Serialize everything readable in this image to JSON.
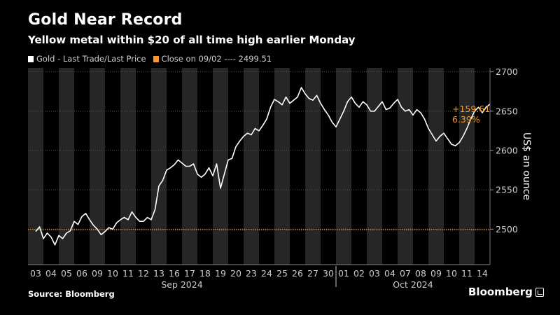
{
  "header": {
    "title": "Gold Near Record",
    "subtitle": "Yellow metal within $20 of all time high earlier Monday"
  },
  "legend": {
    "series_label": "Gold - Last Trade/Last Price",
    "reference_label": "Close on 09/02 ---- 2499.51"
  },
  "annotation": {
    "change_abs": "+159.61",
    "change_pct": "6.39%"
  },
  "footer": {
    "source": "Source: Bloomberg",
    "brand": "Bloomberg"
  },
  "colors": {
    "background": "#000000",
    "shade": "#262626",
    "line": "#ffffff",
    "reference": "#f59a2c",
    "grid": "#555555",
    "axis_text": "#cccccc"
  },
  "chart_data": {
    "type": "line",
    "title": "Gold Near Record",
    "subtitle": "Yellow metal within $20 of all time high earlier Monday",
    "ylabel": "US$ an ounce",
    "ylim": [
      2455,
      2705
    ],
    "yticks": [
      2500,
      2550,
      2600,
      2650,
      2700
    ],
    "grid": "horizontal dotted",
    "legend_position": "top-left",
    "reference_line": {
      "name": "Close on 09/02",
      "value": 2499.51
    },
    "categories": [
      "03",
      "04",
      "05",
      "06",
      "09",
      "10",
      "11",
      "12",
      "13",
      "16",
      "17",
      "18",
      "19",
      "20",
      "23",
      "24",
      "25",
      "26",
      "27",
      "30",
      "01",
      "02",
      "03",
      "04",
      "07",
      "08",
      "09",
      "10",
      "11",
      "14"
    ],
    "month_labels": [
      {
        "label": "Sep 2024",
        "start": 0,
        "end": 19
      },
      {
        "label": "Oct 2024",
        "start": 20,
        "end": 29
      }
    ],
    "series": [
      {
        "name": "Gold - Last Trade/Last Price",
        "points": [
          [
            0.0,
            2497
          ],
          [
            0.25,
            2503
          ],
          [
            0.5,
            2488
          ],
          [
            0.75,
            2495
          ],
          [
            1.0,
            2490
          ],
          [
            1.25,
            2480
          ],
          [
            1.5,
            2492
          ],
          [
            1.75,
            2488
          ],
          [
            2.0,
            2495
          ],
          [
            2.25,
            2498
          ],
          [
            2.5,
            2510
          ],
          [
            2.75,
            2506
          ],
          [
            3.0,
            2516
          ],
          [
            3.25,
            2520
          ],
          [
            3.5,
            2512
          ],
          [
            3.75,
            2505
          ],
          [
            4.0,
            2500
          ],
          [
            4.25,
            2493
          ],
          [
            4.5,
            2497
          ],
          [
            4.75,
            2502
          ],
          [
            5.0,
            2500
          ],
          [
            5.25,
            2508
          ],
          [
            5.5,
            2512
          ],
          [
            5.75,
            2515
          ],
          [
            6.0,
            2512
          ],
          [
            6.25,
            2522
          ],
          [
            6.5,
            2515
          ],
          [
            6.75,
            2510
          ],
          [
            7.0,
            2510
          ],
          [
            7.25,
            2515
          ],
          [
            7.5,
            2512
          ],
          [
            7.75,
            2525
          ],
          [
            8.0,
            2555
          ],
          [
            8.25,
            2562
          ],
          [
            8.5,
            2575
          ],
          [
            8.75,
            2578
          ],
          [
            9.0,
            2582
          ],
          [
            9.25,
            2588
          ],
          [
            9.5,
            2584
          ],
          [
            9.75,
            2580
          ],
          [
            10.0,
            2580
          ],
          [
            10.25,
            2583
          ],
          [
            10.5,
            2570
          ],
          [
            10.75,
            2566
          ],
          [
            11.0,
            2570
          ],
          [
            11.25,
            2578
          ],
          [
            11.5,
            2568
          ],
          [
            11.75,
            2583
          ],
          [
            12.0,
            2552
          ],
          [
            12.25,
            2570
          ],
          [
            12.5,
            2588
          ],
          [
            12.75,
            2590
          ],
          [
            13.0,
            2605
          ],
          [
            13.25,
            2612
          ],
          [
            13.5,
            2618
          ],
          [
            13.75,
            2622
          ],
          [
            14.0,
            2620
          ],
          [
            14.25,
            2628
          ],
          [
            14.5,
            2625
          ],
          [
            14.75,
            2632
          ],
          [
            15.0,
            2640
          ],
          [
            15.25,
            2655
          ],
          [
            15.5,
            2665
          ],
          [
            15.75,
            2662
          ],
          [
            16.0,
            2658
          ],
          [
            16.25,
            2668
          ],
          [
            16.5,
            2660
          ],
          [
            16.75,
            2664
          ],
          [
            17.0,
            2668
          ],
          [
            17.25,
            2680
          ],
          [
            17.5,
            2672
          ],
          [
            17.75,
            2666
          ],
          [
            18.0,
            2664
          ],
          [
            18.25,
            2670
          ],
          [
            18.5,
            2660
          ],
          [
            18.75,
            2652
          ],
          [
            19.0,
            2645
          ],
          [
            19.25,
            2636
          ],
          [
            19.5,
            2630
          ],
          [
            19.75,
            2640
          ],
          [
            20.0,
            2650
          ],
          [
            20.25,
            2662
          ],
          [
            20.5,
            2668
          ],
          [
            20.75,
            2660
          ],
          [
            21.0,
            2655
          ],
          [
            21.25,
            2662
          ],
          [
            21.5,
            2658
          ],
          [
            21.75,
            2650
          ],
          [
            22.0,
            2650
          ],
          [
            22.25,
            2656
          ],
          [
            22.5,
            2662
          ],
          [
            22.75,
            2652
          ],
          [
            23.0,
            2654
          ],
          [
            23.25,
            2660
          ],
          [
            23.5,
            2665
          ],
          [
            23.75,
            2655
          ],
          [
            24.0,
            2650
          ],
          [
            24.25,
            2652
          ],
          [
            24.5,
            2645
          ],
          [
            24.75,
            2652
          ],
          [
            25.0,
            2648
          ],
          [
            25.25,
            2640
          ],
          [
            25.5,
            2628
          ],
          [
            25.75,
            2620
          ],
          [
            26.0,
            2612
          ],
          [
            26.25,
            2618
          ],
          [
            26.5,
            2622
          ],
          [
            26.75,
            2615
          ],
          [
            27.0,
            2608
          ],
          [
            27.25,
            2606
          ],
          [
            27.5,
            2610
          ],
          [
            27.75,
            2618
          ],
          [
            28.0,
            2628
          ],
          [
            28.25,
            2640
          ],
          [
            28.5,
            2650
          ],
          [
            28.75,
            2655
          ],
          [
            29.0,
            2648
          ],
          [
            29.25,
            2655
          ],
          [
            29.5,
            2659
          ]
        ],
        "last_value": 2659.12
      }
    ]
  }
}
